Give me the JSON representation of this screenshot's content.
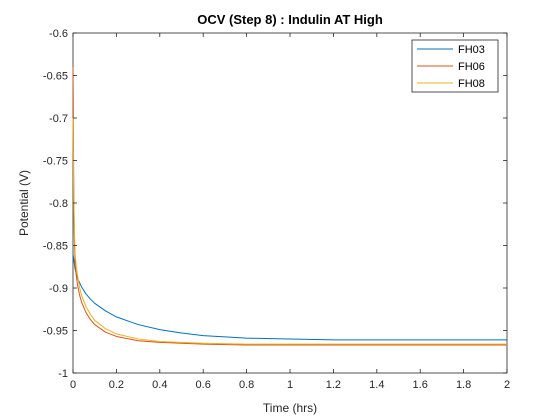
{
  "chart_data": {
    "type": "line",
    "title": "OCV (Step 8) : Indulin AT High",
    "xlabel": "Time (hrs)",
    "ylabel": "Potential (V)",
    "xlim": [
      0,
      2
    ],
    "ylim": [
      -1,
      -0.6
    ],
    "xticks": [
      "0",
      "0.2",
      "0.4",
      "0.6",
      "0.8",
      "1",
      "1.2",
      "1.4",
      "1.6",
      "1.8",
      "2"
    ],
    "yticks": [
      "-0.6",
      "-0.65",
      "-0.7",
      "-0.75",
      "-0.8",
      "-0.85",
      "-0.9",
      "-0.95",
      "-1"
    ],
    "grid": false,
    "legend": {
      "location": "top-right"
    },
    "series": [
      {
        "name": "FH03",
        "color": "#0072BD",
        "x": [
          0,
          0.01,
          0.02,
          0.04,
          0.06,
          0.08,
          0.1,
          0.15,
          0.2,
          0.3,
          0.4,
          0.5,
          0.6,
          0.8,
          1.0,
          1.2,
          1.4,
          1.6,
          1.8,
          2.0
        ],
        "y": [
          -0.86,
          -0.878,
          -0.888,
          -0.899,
          -0.907,
          -0.913,
          -0.918,
          -0.927,
          -0.934,
          -0.943,
          -0.949,
          -0.953,
          -0.956,
          -0.959,
          -0.96,
          -0.961,
          -0.961,
          -0.961,
          -0.961,
          -0.961
        ]
      },
      {
        "name": "FH06",
        "color": "#D95319",
        "x": [
          0,
          0.002,
          0.004,
          0.007,
          0.01,
          0.015,
          0.02,
          0.03,
          0.04,
          0.06,
          0.08,
          0.1,
          0.15,
          0.2,
          0.3,
          0.4,
          0.6,
          0.8,
          1.0,
          1.4,
          1.8,
          2.0
        ],
        "y": [
          -0.64,
          -0.72,
          -0.8,
          -0.85,
          -0.872,
          -0.885,
          -0.895,
          -0.908,
          -0.917,
          -0.929,
          -0.937,
          -0.943,
          -0.952,
          -0.957,
          -0.962,
          -0.964,
          -0.966,
          -0.967,
          -0.967,
          -0.967,
          -0.967,
          -0.967
        ]
      },
      {
        "name": "FH08",
        "color": "#EDB120",
        "x": [
          0,
          0.003,
          0.006,
          0.01,
          0.015,
          0.02,
          0.03,
          0.04,
          0.06,
          0.08,
          0.1,
          0.15,
          0.2,
          0.3,
          0.4,
          0.6,
          0.8,
          1.0,
          1.4,
          1.8,
          2.0
        ],
        "y": [
          -0.7,
          -0.78,
          -0.83,
          -0.86,
          -0.874,
          -0.884,
          -0.899,
          -0.909,
          -0.922,
          -0.931,
          -0.938,
          -0.948,
          -0.954,
          -0.96,
          -0.963,
          -0.965,
          -0.966,
          -0.966,
          -0.966,
          -0.966,
          -0.966
        ]
      }
    ]
  }
}
